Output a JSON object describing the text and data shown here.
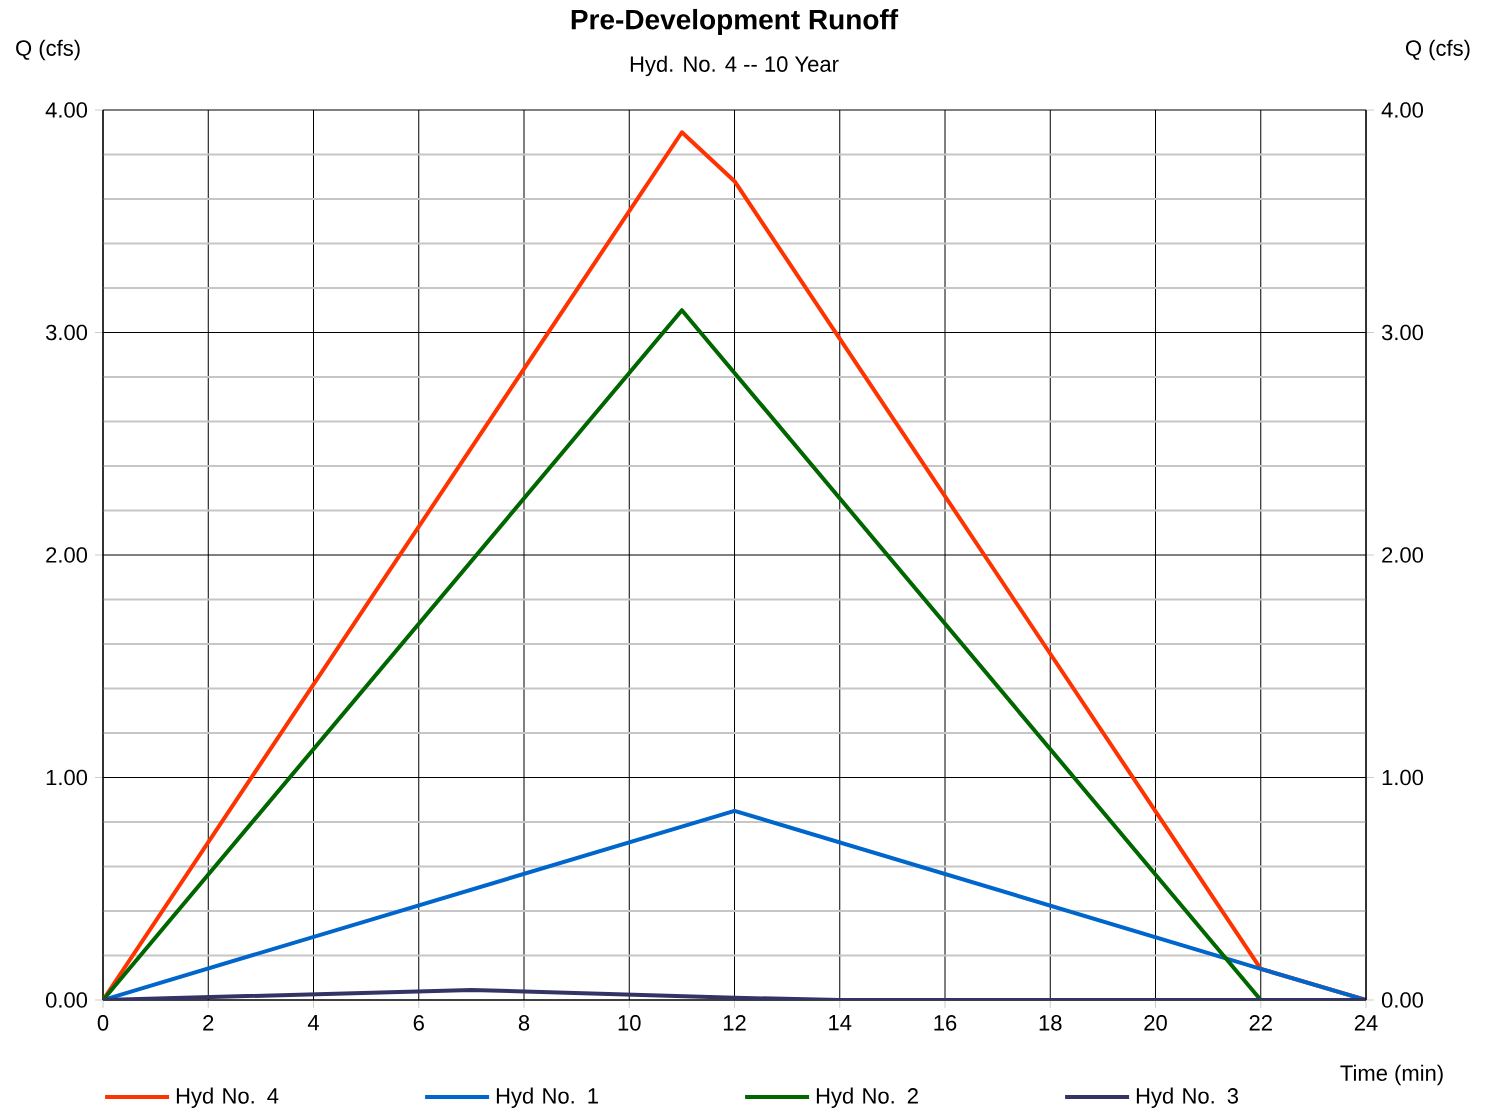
{
  "chart_data": {
    "type": "line",
    "title": "Pre-Development Runoff",
    "subtitle": "Hyd. No. 4 -- 10 Year",
    "xlabel": "Time (min)",
    "ylabel": "Q (cfs)",
    "y2label": "Q (cfs)",
    "series": [
      {
        "name": "Hyd No. 4",
        "color": "#ff3300",
        "x": [
          0,
          11,
          12,
          22,
          24
        ],
        "values": [
          0,
          3.9,
          3.68,
          0.14,
          0
        ]
      },
      {
        "name": "Hyd No. 1",
        "color": "#0066cc",
        "x": [
          0,
          12,
          22,
          24
        ],
        "values": [
          0,
          0.85,
          0.14,
          0
        ]
      },
      {
        "name": "Hyd No. 2",
        "color": "#006600",
        "x": [
          0,
          11,
          22,
          24
        ],
        "values": [
          0,
          3.1,
          0,
          0
        ]
      },
      {
        "name": "Hyd No. 3",
        "color": "#333366",
        "x": [
          0,
          7,
          12,
          14,
          24
        ],
        "values": [
          0,
          0.045,
          0.01,
          0,
          0
        ]
      }
    ],
    "xlim": [
      0,
      24
    ],
    "xticks": [
      0,
      2,
      4,
      6,
      8,
      10,
      12,
      14,
      16,
      18,
      20,
      22,
      24
    ],
    "ylim": [
      0,
      4
    ],
    "yticks": [
      {
        "value": 0,
        "label": "0.00"
      },
      {
        "value": 1,
        "label": "1.00"
      },
      {
        "value": 2,
        "label": "2.00"
      },
      {
        "value": 3,
        "label": "3.00"
      },
      {
        "value": 4,
        "label": "4.00"
      }
    ],
    "y2lim": [
      0,
      4
    ],
    "y2ticks": [
      {
        "value": 0,
        "label": "0.00"
      },
      {
        "value": 1,
        "label": "1.00"
      },
      {
        "value": 2,
        "label": "2.00"
      },
      {
        "value": 3,
        "label": "3.00"
      },
      {
        "value": 4,
        "label": "4.00"
      }
    ],
    "grid": true,
    "legend": "bottom"
  }
}
